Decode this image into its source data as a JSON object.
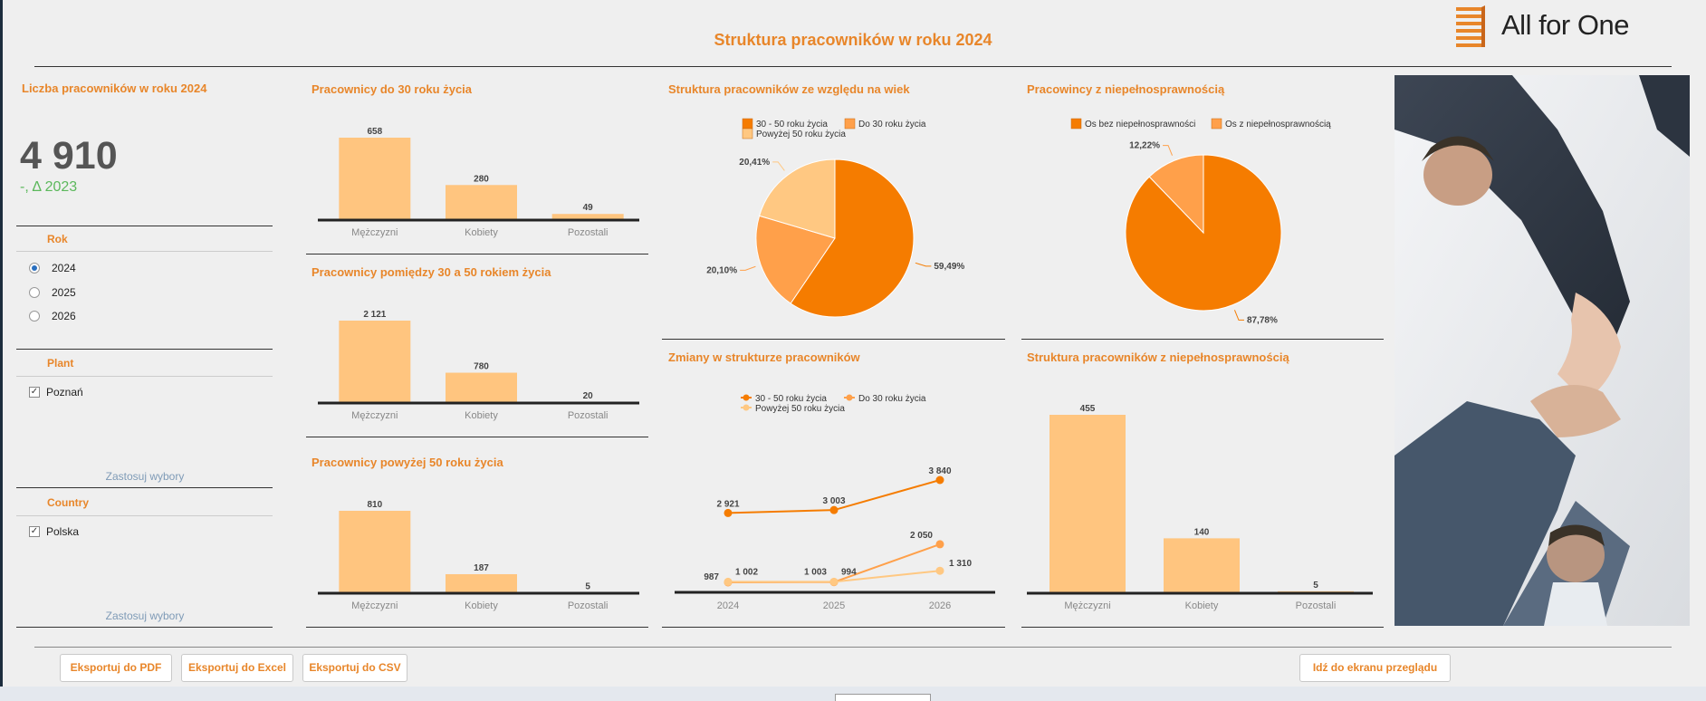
{
  "page": {
    "title": "Struktura pracowników w roku 2024",
    "logo_text": "All for One"
  },
  "kpi": {
    "title": "Liczba pracowników w roku 2024",
    "value": "4 910",
    "delta": "-, Δ 2023"
  },
  "filters": {
    "rok": {
      "title": "Rok",
      "options": [
        {
          "label": "2024",
          "selected": true
        },
        {
          "label": "2025",
          "selected": false
        },
        {
          "label": "2026",
          "selected": false
        }
      ]
    },
    "plant": {
      "title": "Plant",
      "options": [
        {
          "label": "Poznań",
          "checked": true
        }
      ],
      "apply": "Zastosuj wybory"
    },
    "country": {
      "title": "Country",
      "options": [
        {
          "label": "Polska",
          "checked": true
        }
      ],
      "apply": "Zastosuj wybory"
    }
  },
  "buttons": {
    "pdf": "Eksportuj do PDF",
    "excel": "Eksportuj do Excel",
    "csv": "Eksportuj do CSV",
    "overview": "Idź do ekranu przeglądu"
  },
  "colors": {
    "accent": "#e8862a",
    "bar": "#ffc57f",
    "dark_orange": "#f57c00",
    "mid_orange": "#ffa04a",
    "light_orange": "#ffc882",
    "positive": "#5cb85c"
  },
  "chart_data": [
    {
      "id": "under30",
      "type": "bar",
      "title": "Pracownicy do 30 roku życia",
      "categories": [
        "Mężczyzni",
        "Kobiety",
        "Pozostali"
      ],
      "values": [
        658,
        280,
        49
      ],
      "labels": [
        "658",
        "280",
        "49"
      ],
      "ylim": [
        0,
        658
      ]
    },
    {
      "id": "between30_50",
      "type": "bar",
      "title": "Pracownicy pomiędzy 30 a 50 rokiem życia",
      "categories": [
        "Mężczyzni",
        "Kobiety",
        "Pozostali"
      ],
      "values": [
        2121,
        780,
        20
      ],
      "labels": [
        "2 121",
        "780",
        "20"
      ],
      "ylim": [
        0,
        2121
      ]
    },
    {
      "id": "over50",
      "type": "bar",
      "title": "Pracownicy powyżej 50 roku życia",
      "categories": [
        "Mężczyzni",
        "Kobiety",
        "Pozostali"
      ],
      "values": [
        810,
        187,
        5
      ],
      "labels": [
        "810",
        "187",
        "5"
      ],
      "ylim": [
        0,
        810
      ]
    },
    {
      "id": "age_structure",
      "type": "pie",
      "title": "Struktura pracowników ze względu na wiek",
      "legend": [
        "30 - 50 roku życia",
        "Do 30 roku życia",
        "Powyżej 50 roku życia"
      ],
      "values": [
        59.49,
        20.1,
        20.41
      ],
      "labels": [
        "59,49%",
        "20,10%",
        "20,41%"
      ],
      "colors": [
        "#f57c00",
        "#ffa04a",
        "#ffc882"
      ]
    },
    {
      "id": "disability",
      "type": "pie",
      "title": "Pracowincy z niepełnosprawnością",
      "legend": [
        "Os bez niepełnosprawności",
        "Os z niepełnosprawnością"
      ],
      "values": [
        87.78,
        12.22
      ],
      "labels": [
        "87,78%",
        "12,22%"
      ],
      "colors": [
        "#f57c00",
        "#ffa04a"
      ]
    },
    {
      "id": "changes",
      "type": "line",
      "title": "Zmiany w strukturze pracowników",
      "x": [
        "2024",
        "2025",
        "2026"
      ],
      "series": [
        {
          "name": "30 - 50 roku życia",
          "values": [
            2921,
            3003,
            3840
          ],
          "labels": [
            "2 921",
            "3 003",
            "3 840"
          ],
          "color": "#f57c00"
        },
        {
          "name": "Do 30 roku życia",
          "values": [
            987,
            994,
            2050
          ],
          "labels": [
            "987",
            "994",
            "2 050"
          ],
          "color": "#ffa04a"
        },
        {
          "name": "Powyżej 50 roku życia",
          "values": [
            1002,
            1003,
            1310
          ],
          "labels": [
            "1 002",
            "1 003",
            "1 310"
          ],
          "color": "#ffc882"
        }
      ]
    },
    {
      "id": "disability_structure",
      "type": "bar",
      "title": "Struktura pracowników z niepełnosprawnością",
      "categories": [
        "Mężczyzni",
        "Kobiety",
        "Pozostali"
      ],
      "values": [
        455,
        140,
        5
      ],
      "labels": [
        "455",
        "140",
        "5"
      ],
      "ylim": [
        0,
        455
      ]
    }
  ]
}
